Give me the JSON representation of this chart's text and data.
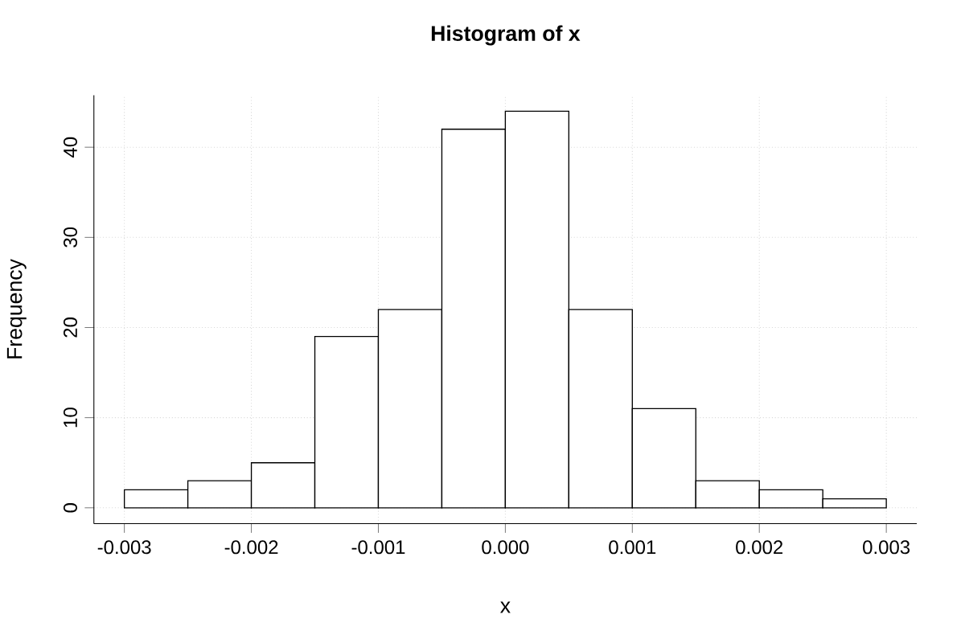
{
  "chart_data": {
    "type": "histogram",
    "title": "Histogram of x",
    "xlabel": "x",
    "ylabel": "Frequency",
    "bins": [
      -0.003,
      -0.0025,
      -0.002,
      -0.0015,
      -0.001,
      -0.0005,
      0,
      0.0005,
      0.001,
      0.0015,
      0.002,
      0.0025,
      0.003
    ],
    "values": [
      2,
      3,
      5,
      19,
      22,
      42,
      44,
      22,
      11,
      3,
      2,
      1
    ],
    "color": "#ffffff",
    "xlim": [
      -0.00324,
      0.00324
    ],
    "ylim": [
      -1.76,
      45.76
    ],
    "xticks": [
      {
        "value": -0.003,
        "label": "-0.003"
      },
      {
        "value": -0.002,
        "label": "-0.002"
      },
      {
        "value": -0.001,
        "label": "-0.001"
      },
      {
        "value": 0,
        "label": "0.000"
      },
      {
        "value": 0.001,
        "label": "0.001"
      },
      {
        "value": 0.002,
        "label": "0.002"
      },
      {
        "value": 0.003,
        "label": "0.003"
      }
    ],
    "yticks": [
      0,
      10,
      20,
      30,
      40
    ],
    "grid": true
  }
}
